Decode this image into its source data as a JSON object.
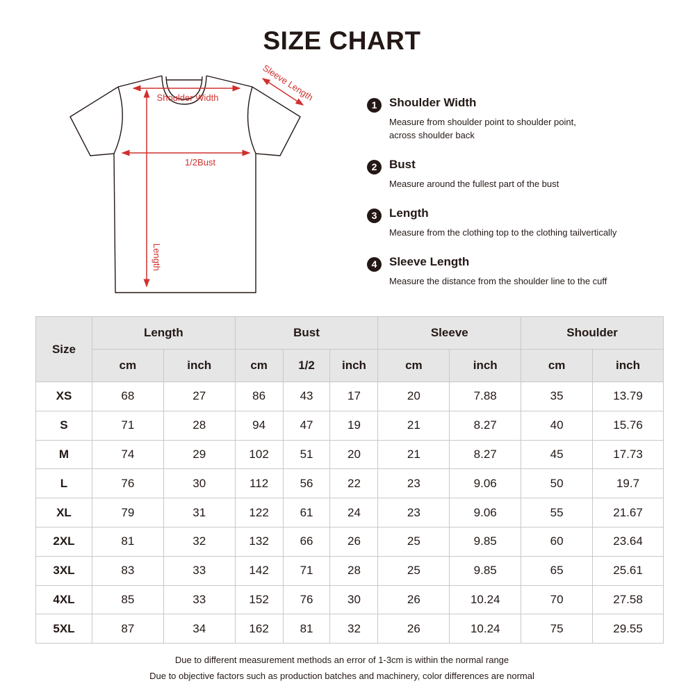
{
  "title": "SIZE CHART",
  "diagram": {
    "labels": {
      "shoulder_width": "Shoulder Width",
      "half_bust": "1/2Bust",
      "length": "Length",
      "sleeve_length": "Sleeve Length"
    },
    "line_color": "#231815",
    "measure_color": "#d0302f"
  },
  "definitions": [
    {
      "num": "1",
      "title": "Shoulder Width",
      "desc": "Measure from shoulder point to shoulder point, across shoulder back"
    },
    {
      "num": "2",
      "title": "Bust",
      "desc": "Measure around the fullest part of the bust"
    },
    {
      "num": "3",
      "title": "Length",
      "desc": "Measure from the clothing top to the clothing tailvertically"
    },
    {
      "num": "4",
      "title": "Sleeve Length",
      "desc": "Measure the distance from the shoulder line to the cuff"
    }
  ],
  "table": {
    "size_header": "Size",
    "groups": [
      "Length",
      "Bust",
      "Sleeve",
      "Shoulder"
    ],
    "subheaders": [
      "cm",
      "inch",
      "cm",
      "1/2",
      "inch",
      "cm",
      "inch",
      "cm",
      "inch"
    ],
    "rows": [
      [
        "XS",
        "68",
        "27",
        "86",
        "43",
        "17",
        "20",
        "7.88",
        "35",
        "13.79"
      ],
      [
        "S",
        "71",
        "28",
        "94",
        "47",
        "19",
        "21",
        "8.27",
        "40",
        "15.76"
      ],
      [
        "M",
        "74",
        "29",
        "102",
        "51",
        "20",
        "21",
        "8.27",
        "45",
        "17.73"
      ],
      [
        "L",
        "76",
        "30",
        "112",
        "56",
        "22",
        "23",
        "9.06",
        "50",
        "19.7"
      ],
      [
        "XL",
        "79",
        "31",
        "122",
        "61",
        "24",
        "23",
        "9.06",
        "55",
        "21.67"
      ],
      [
        "2XL",
        "81",
        "32",
        "132",
        "66",
        "26",
        "25",
        "9.85",
        "60",
        "23.64"
      ],
      [
        "3XL",
        "83",
        "33",
        "142",
        "71",
        "28",
        "25",
        "9.85",
        "65",
        "25.61"
      ],
      [
        "4XL",
        "85",
        "33",
        "152",
        "76",
        "30",
        "26",
        "10.24",
        "70",
        "27.58"
      ],
      [
        "5XL",
        "87",
        "34",
        "162",
        "81",
        "32",
        "26",
        "10.24",
        "75",
        "29.55"
      ]
    ]
  },
  "notes": [
    "Due to different measurement methods an error of 1-3cm is within the normal range",
    "Due to objective factors such as production batches and machinery, color differences are normal"
  ]
}
